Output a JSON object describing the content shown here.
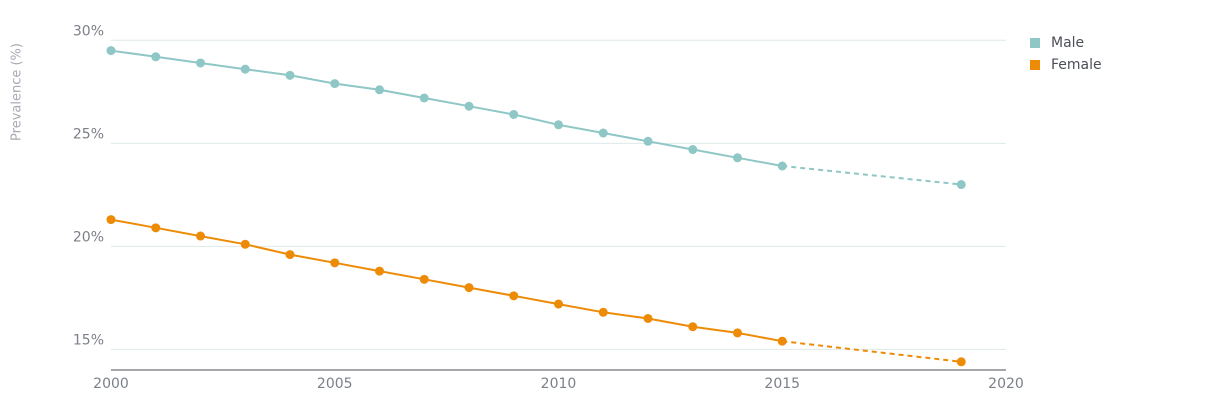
{
  "chart_data": {
    "type": "line",
    "ylabel": "Prevalence (%)",
    "xlim": [
      2000,
      2020
    ],
    "ylim": [
      14,
      30.5
    ],
    "x_ticks": [
      "2000",
      "2005",
      "2010",
      "2015",
      "2020"
    ],
    "y_ticks": [
      "30%",
      "25%",
      "20%",
      "15%"
    ],
    "grid": true,
    "legend_position": "top-right",
    "series": [
      {
        "name": "Male",
        "color": "#8fc7c6",
        "solid": [
          [
            2000,
            29.5
          ],
          [
            2001,
            29.2
          ],
          [
            2002,
            28.9
          ],
          [
            2003,
            28.6
          ],
          [
            2004,
            28.3
          ],
          [
            2005,
            27.9
          ],
          [
            2006,
            27.6
          ],
          [
            2007,
            27.2
          ],
          [
            2008,
            26.8
          ],
          [
            2009,
            26.4
          ],
          [
            2010,
            25.9
          ],
          [
            2011,
            25.5
          ],
          [
            2012,
            25.1
          ],
          [
            2013,
            24.7
          ],
          [
            2014,
            24.3
          ],
          [
            2015,
            23.9
          ]
        ],
        "projected": [
          [
            2019,
            23.0
          ]
        ]
      },
      {
        "name": "Female",
        "color": "#ed8b07",
        "solid": [
          [
            2000,
            21.3
          ],
          [
            2001,
            20.9
          ],
          [
            2002,
            20.5
          ],
          [
            2003,
            20.1
          ],
          [
            2004,
            19.6
          ],
          [
            2005,
            19.2
          ],
          [
            2006,
            18.8
          ],
          [
            2007,
            18.4
          ],
          [
            2008,
            18.0
          ],
          [
            2009,
            17.6
          ],
          [
            2010,
            17.2
          ],
          [
            2011,
            16.8
          ],
          [
            2012,
            16.5
          ],
          [
            2013,
            16.1
          ],
          [
            2014,
            15.8
          ],
          [
            2015,
            15.4
          ]
        ],
        "projected": [
          [
            2019,
            14.4
          ]
        ]
      }
    ]
  },
  "colors": {
    "grid": "#dde9e8",
    "axis": "#4b4f57",
    "tick_text": "#7c8088",
    "axis_title_text": "#a7abb3"
  }
}
